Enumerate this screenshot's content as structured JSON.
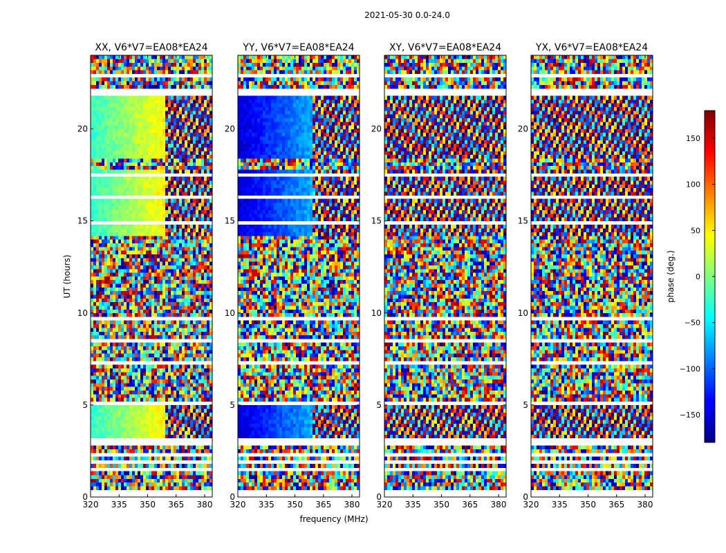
{
  "figure": {
    "suptitle": "2021-05-30 0.0-24.0",
    "xlabel": "frequency (MHz)",
    "ylabel": "UT (hours)",
    "colorbar_label": "phase (deg.)",
    "colorbar_colormap": "jet",
    "colorbar_ticks": [
      -150,
      -100,
      -50,
      0,
      50,
      100,
      150
    ],
    "colorbar_range": [
      -180,
      180
    ],
    "background_color": "#ffffff",
    "blank_color": "#ffffff"
  },
  "chart_data": [
    {
      "type": "heatmap",
      "title": "XX, V6*V7=EA08*EA24",
      "x_ticks": [
        320,
        335,
        350,
        365,
        380
      ],
      "y_ticks": [
        0,
        5,
        10,
        15,
        20
      ],
      "xlim": [
        320,
        384
      ],
      "ylim": [
        0,
        24
      ],
      "z_label": "phase (deg.)"
    },
    {
      "type": "heatmap",
      "title": "YY, V6*V7=EA08*EA24",
      "x_ticks": [
        320,
        335,
        350,
        365,
        380
      ],
      "y_ticks": [
        0,
        5,
        10,
        15,
        20
      ],
      "xlim": [
        320,
        384
      ],
      "ylim": [
        0,
        24
      ],
      "z_label": "phase (deg.)"
    },
    {
      "type": "heatmap",
      "title": "XY, V6*V7=EA08*EA24",
      "x_ticks": [
        320,
        335,
        350,
        365,
        380
      ],
      "y_ticks": [
        0,
        5,
        10,
        15,
        20
      ],
      "xlim": [
        320,
        384
      ],
      "ylim": [
        0,
        24
      ],
      "z_label": "phase (deg.)"
    },
    {
      "type": "heatmap",
      "title": "YX, V6*V7=EA08*EA24",
      "x_ticks": [
        320,
        335,
        350,
        365,
        380
      ],
      "y_ticks": [
        0,
        5,
        10,
        15,
        20
      ],
      "xlim": [
        320,
        384
      ],
      "ylim": [
        0,
        24
      ],
      "z_label": "phase (deg.)"
    }
  ]
}
